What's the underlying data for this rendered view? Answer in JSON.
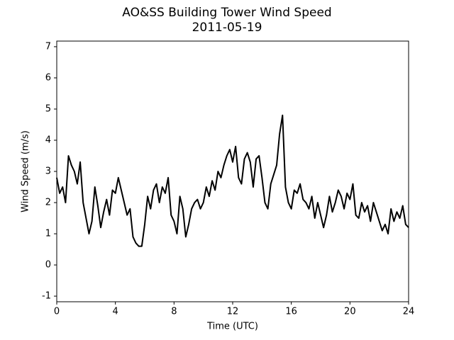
{
  "chart_data": {
    "type": "line",
    "title": "AO&SS Building Tower Wind Speed",
    "subtitle": "2011-05-19",
    "x_label": "Time (UTC)",
    "y_label": "Wind Speed (m/s)",
    "xlim": [
      0,
      24
    ],
    "xticks": [
      0,
      4,
      8,
      12,
      16,
      20,
      24
    ],
    "ylim": [
      -1.18,
      7.18
    ],
    "yticks": [
      -1,
      0,
      1,
      2,
      3,
      4,
      5,
      6,
      7
    ],
    "x": [
      0.0,
      0.2,
      0.4,
      0.6,
      0.8,
      1.0,
      1.2,
      1.4,
      1.6,
      1.8,
      2.0,
      2.2,
      2.4,
      2.6,
      2.8,
      3.0,
      3.2,
      3.4,
      3.6,
      3.8,
      4.0,
      4.2,
      4.4,
      4.6,
      4.8,
      5.0,
      5.2,
      5.4,
      5.6,
      5.8,
      6.0,
      6.2,
      6.4,
      6.6,
      6.8,
      7.0,
      7.2,
      7.4,
      7.6,
      7.8,
      8.0,
      8.2,
      8.4,
      8.6,
      8.8,
      9.0,
      9.2,
      9.4,
      9.6,
      9.8,
      10.0,
      10.2,
      10.4,
      10.6,
      10.8,
      11.0,
      11.2,
      11.4,
      11.6,
      11.8,
      12.0,
      12.2,
      12.4,
      12.6,
      12.8,
      13.0,
      13.2,
      13.4,
      13.6,
      13.8,
      14.0,
      14.2,
      14.4,
      14.6,
      14.8,
      15.0,
      15.2,
      15.4,
      15.6,
      15.8,
      16.0,
      16.2,
      16.4,
      16.6,
      16.8,
      17.0,
      17.2,
      17.4,
      17.6,
      17.8,
      18.0,
      18.2,
      18.4,
      18.6,
      18.8,
      19.0,
      19.2,
      19.4,
      19.6,
      19.8,
      20.0,
      20.2,
      20.4,
      20.6,
      20.8,
      21.0,
      21.2,
      21.4,
      21.6,
      21.8,
      22.0,
      22.2,
      22.4,
      22.6,
      22.8,
      23.0,
      23.2,
      23.4,
      23.6,
      23.8,
      24.0
    ],
    "series": [
      {
        "color": "#000000",
        "values": [
          2.8,
          2.3,
          2.5,
          2.0,
          3.5,
          3.2,
          3.0,
          2.6,
          3.3,
          2.0,
          1.5,
          1.0,
          1.4,
          2.5,
          1.9,
          1.2,
          1.7,
          2.1,
          1.6,
          2.4,
          2.3,
          2.8,
          2.4,
          2.0,
          1.6,
          1.8,
          0.9,
          0.7,
          0.6,
          0.6,
          1.3,
          2.2,
          1.8,
          2.4,
          2.6,
          2.0,
          2.5,
          2.3,
          2.8,
          1.6,
          1.4,
          1.0,
          2.2,
          1.8,
          0.9,
          1.3,
          1.8,
          2.0,
          2.1,
          1.8,
          2.0,
          2.5,
          2.2,
          2.7,
          2.4,
          3.0,
          2.8,
          3.2,
          3.5,
          3.7,
          3.3,
          3.8,
          2.8,
          2.6,
          3.4,
          3.6,
          3.3,
          2.5,
          3.4,
          3.5,
          2.8,
          2.0,
          1.8,
          2.6,
          2.9,
          3.2,
          4.2,
          4.8,
          2.5,
          2.0,
          1.8,
          2.4,
          2.3,
          2.6,
          2.1,
          2.0,
          1.8,
          2.2,
          1.5,
          2.0,
          1.6,
          1.2,
          1.6,
          2.2,
          1.7,
          2.0,
          2.4,
          2.2,
          1.8,
          2.3,
          2.1,
          2.6,
          1.6,
          1.5,
          2.0,
          1.7,
          1.9,
          1.4,
          2.0,
          1.7,
          1.4,
          1.1,
          1.3,
          1.0,
          1.8,
          1.4,
          1.7,
          1.5,
          1.9,
          1.3,
          1.2
        ]
      }
    ]
  }
}
